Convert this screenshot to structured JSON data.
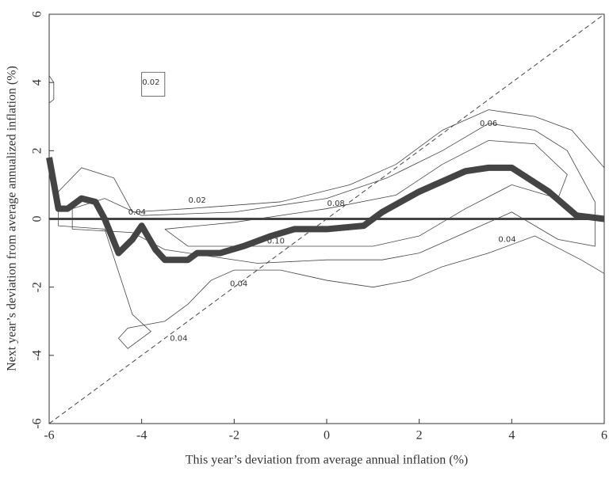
{
  "chart_data": {
    "type": "contour-line",
    "xlabel": "This year’s deviation from average annual inflation (%)",
    "ylabel": "Next year’s deviation from average annualized inflation (%)",
    "xlim": [
      -6,
      6
    ],
    "ylim": [
      -6,
      6
    ],
    "xticks": [
      -6,
      -4,
      -2,
      0,
      2,
      4,
      6
    ],
    "yticks": [
      -6,
      -4,
      -2,
      0,
      2,
      4,
      6
    ],
    "series": [
      {
        "x": [
          -6,
          -5.8,
          -5.6,
          -5.3,
          -5,
          -4.8,
          -4.5,
          -4.2,
          -4,
          -3.7,
          -3.5,
          -3,
          -2.8,
          -2.3,
          -1.8,
          -1.2,
          -0.7,
          0,
          0.8,
          1.2,
          2,
          3,
          3.5,
          4,
          4.8,
          5.4,
          6
        ],
        "values": [
          1.8,
          0.3,
          0.3,
          0.6,
          0.5,
          0,
          -1,
          -0.6,
          -0.2,
          -0.9,
          -1.2,
          -1.2,
          -1,
          -1,
          -0.8,
          -0.5,
          -0.3,
          -0.3,
          -0.2,
          0.2,
          0.8,
          1.4,
          1.5,
          1.5,
          0.8,
          0.1,
          0
        ],
        "color": "#444444"
      }
    ],
    "diagonal": {
      "x": [
        -6,
        6
      ],
      "values": [
        -6,
        6
      ]
    },
    "hline": 0,
    "contours": [
      {
        "x": [
          -5.8,
          -5.3,
          -4.6,
          -4.2,
          -3,
          -1,
          0.5,
          1.5,
          2.5,
          3.5,
          4.5,
          5.3,
          6,
          6,
          5.5,
          4.5,
          3.5,
          2.5,
          1.8,
          1,
          0,
          -1,
          -2,
          -2.5,
          -3,
          -3.5,
          -4.3,
          -4.5,
          -4.3,
          -3.8,
          -4.2,
          -4.8,
          -5.8,
          -5.8
        ],
        "y": [
          0.8,
          1.5,
          1.2,
          0.2,
          0.3,
          0.5,
          1,
          1.6,
          2.6,
          3.2,
          3,
          2.6,
          1.5,
          -1.6,
          -1.2,
          -0.5,
          -1,
          -1.4,
          -1.8,
          -2,
          -1.8,
          -1.5,
          -1.5,
          -1.8,
          -2.5,
          -3,
          -3.2,
          -3.5,
          -3.8,
          -3.3,
          -2.8,
          -0.3,
          -0.2,
          0.8
        ]
      },
      {
        "x": [
          -5.5,
          -4.8,
          -4,
          -2,
          0,
          1.3,
          2.5,
          3.5,
          4.5,
          5.2,
          5.8,
          5.8,
          5,
          4,
          3,
          2,
          1.2,
          0,
          -1.5,
          -2.5,
          -3.5,
          -4.2,
          -5.5,
          -5.5
        ],
        "y": [
          0.3,
          0.6,
          0.1,
          0.2,
          0.6,
          1.2,
          2,
          2.8,
          2.6,
          2,
          0.5,
          -0.8,
          -0.6,
          0.2,
          -0.4,
          -1,
          -1.2,
          -1.2,
          -1.3,
          -1.1,
          -0.9,
          -0.4,
          -0.3,
          0.3
        ]
      },
      {
        "x": [
          -3.5,
          -2,
          0,
          1.5,
          2.5,
          3.5,
          4.5,
          5.2,
          5,
          4,
          3,
          2,
          1,
          0,
          -1.5,
          -3,
          -3.5
        ],
        "y": [
          -0.3,
          -0.1,
          0.3,
          0.7,
          1.6,
          2.3,
          2.2,
          1.3,
          0.6,
          1,
          0.3,
          -0.5,
          -0.8,
          -0.8,
          -0.8,
          -0.8,
          -0.3
        ]
      },
      {
        "x": [
          -4,
          -3.5,
          -3.5,
          -4,
          -4
        ],
        "y": [
          4.3,
          4.3,
          3.6,
          3.6,
          4.3
        ]
      },
      {
        "x": [
          -6,
          -5.9,
          -5.9,
          -6
        ],
        "y": [
          4.2,
          4,
          3.5,
          3.4
        ]
      }
    ],
    "contour_labels": [
      "0.02",
      "0.02",
      "0.04",
      "0.04",
      "0.04",
      "0.06",
      "0.08",
      "0.10",
      "0.04"
    ]
  }
}
